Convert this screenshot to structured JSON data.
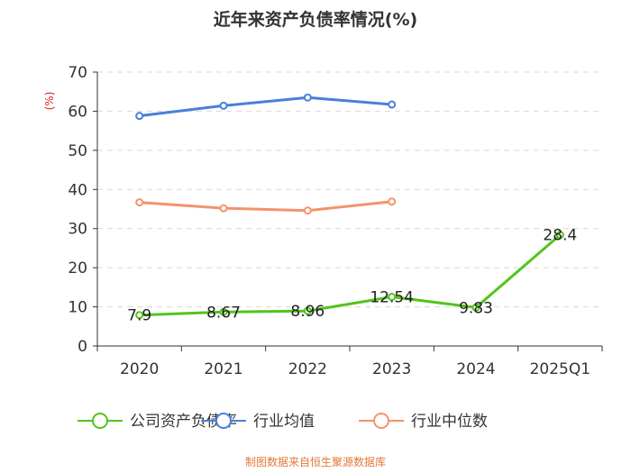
{
  "chart_data": {
    "type": "line",
    "title": "近年来资产负债率情况(%)",
    "ylabel": "(%)",
    "xlabel": "",
    "categories": [
      "2020",
      "2021",
      "2022",
      "2023",
      "2024",
      "2025Q1"
    ],
    "ylim": [
      0,
      70
    ],
    "yticks": [
      0,
      10,
      20,
      30,
      40,
      50,
      60,
      70
    ],
    "grid": true,
    "legend_position": "bottom-center",
    "series": [
      {
        "name": "公司资产负债率",
        "color": "#52c41a",
        "values": [
          7.9,
          8.67,
          8.96,
          12.54,
          9.83,
          28.4
        ],
        "labels": [
          "7.9",
          "8.67",
          "8.96",
          "12.54",
          "9.83",
          "28.4"
        ],
        "show_labels": true
      },
      {
        "name": "行业均值",
        "color": "#4a7fdc",
        "values": [
          58.8,
          61.4,
          63.5,
          61.7,
          null,
          null
        ],
        "show_labels": false
      },
      {
        "name": "行业中位数",
        "color": "#f4936a",
        "values": [
          36.7,
          35.2,
          34.6,
          36.9,
          null,
          null
        ],
        "show_labels": false
      }
    ],
    "source_note": "制图数据来自恒生聚源数据库",
    "source_color": "#e07a38",
    "ylabel_color": "#e02020"
  }
}
